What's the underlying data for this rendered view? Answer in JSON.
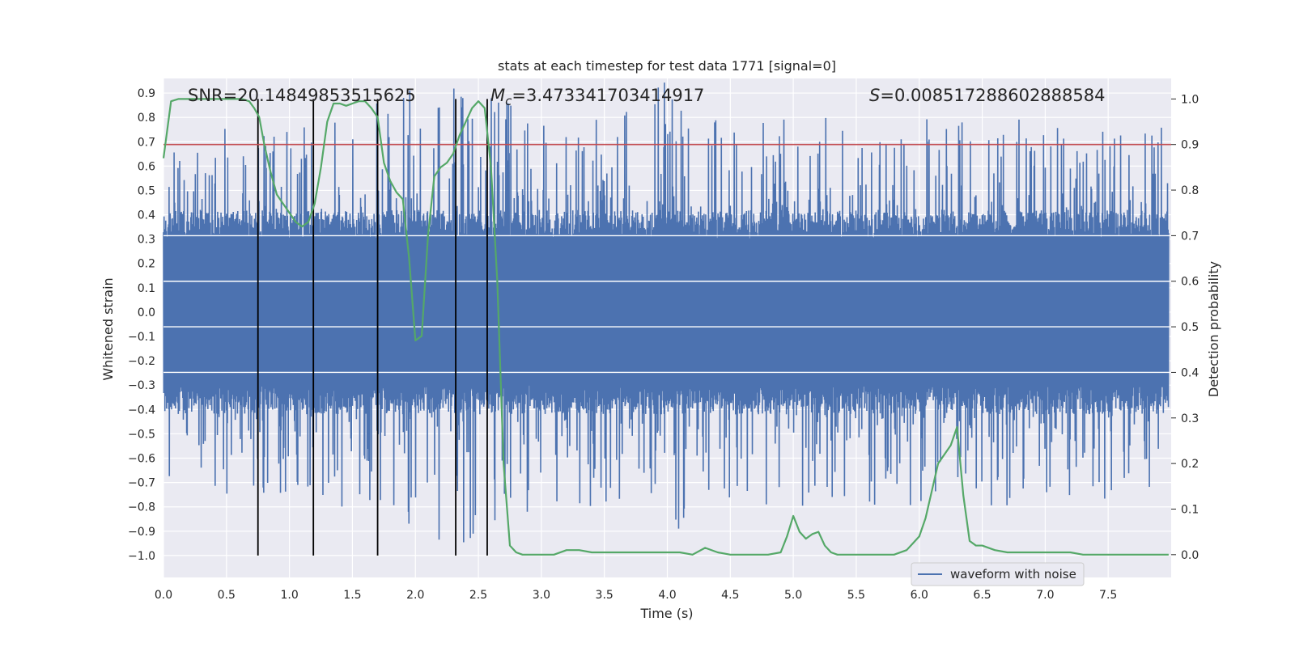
{
  "chart_data": {
    "type": "line",
    "title": "stats at each timestep for test data 1771 [signal=0]",
    "xlabel": "Time (s)",
    "ylabel_left": "Whitened strain",
    "ylabel_right": "Detection probability",
    "xlim": [
      0.0,
      8.0
    ],
    "ylim_left": [
      -1.09,
      0.96
    ],
    "ylim_right": [
      -0.05,
      1.045
    ],
    "x_ticks": [
      "0.0",
      "0.5",
      "1.0",
      "1.5",
      "2.0",
      "2.5",
      "3.0",
      "3.5",
      "4.0",
      "4.5",
      "5.0",
      "5.5",
      "6.0",
      "6.5",
      "7.0",
      "7.5"
    ],
    "y_ticks_left": [
      "-1.0",
      "-0.9",
      "-0.8",
      "-0.7",
      "-0.6",
      "-0.5",
      "-0.4",
      "-0.3",
      "-0.2",
      "-0.1",
      "0.0",
      "0.1",
      "0.2",
      "0.3",
      "0.4",
      "0.5",
      "0.6",
      "0.7",
      "0.8",
      "0.9"
    ],
    "y_ticks_right": [
      "0.0",
      "0.1",
      "0.2",
      "0.3",
      "0.4",
      "0.5",
      "0.6",
      "0.7",
      "0.8",
      "0.9",
      "1.0"
    ],
    "annotations": {
      "snr": "SNR=20.14849853515625",
      "mc_symbol": "M",
      "mc_sub": "c",
      "mc_value": "=3.473341703414917",
      "s_symbol": "S",
      "s_value": "=0.008517288602888584"
    },
    "threshold": 0.9,
    "event_times": [
      0.75,
      1.19,
      1.7,
      2.32,
      2.57
    ],
    "event_line_ymin": -1.0,
    "waveform": {
      "name": "waveform with noise",
      "x_max": 7.98,
      "core_amplitude": 0.3,
      "envelope": [
        [
          0.0,
          0.75
        ],
        [
          0.5,
          0.8
        ],
        [
          1.0,
          0.75
        ],
        [
          1.5,
          0.85
        ],
        [
          2.0,
          0.95
        ],
        [
          2.5,
          0.95
        ],
        [
          3.0,
          0.8
        ],
        [
          3.5,
          0.8
        ],
        [
          4.0,
          0.95
        ],
        [
          4.5,
          0.8
        ],
        [
          5.0,
          0.8
        ],
        [
          5.5,
          0.8
        ],
        [
          6.0,
          0.8
        ],
        [
          6.5,
          0.8
        ],
        [
          7.0,
          0.8
        ],
        [
          7.5,
          0.8
        ],
        [
          8.0,
          0.75
        ]
      ]
    },
    "probability": {
      "x": [
        0.0,
        0.06,
        0.12,
        0.2,
        0.35,
        0.5,
        0.62,
        0.68,
        0.72,
        0.76,
        0.8,
        0.85,
        0.9,
        0.95,
        1.0,
        1.05,
        1.1,
        1.15,
        1.2,
        1.25,
        1.3,
        1.35,
        1.4,
        1.45,
        1.5,
        1.55,
        1.6,
        1.65,
        1.7,
        1.75,
        1.8,
        1.85,
        1.9,
        1.95,
        2.0,
        2.05,
        2.1,
        2.15,
        2.2,
        2.25,
        2.3,
        2.35,
        2.4,
        2.45,
        2.5,
        2.55,
        2.6,
        2.65,
        2.7,
        2.75,
        2.8,
        2.85,
        2.9,
        3.0,
        3.1,
        3.2,
        3.3,
        3.4,
        3.5,
        3.6,
        3.7,
        3.8,
        3.9,
        4.0,
        4.1,
        4.2,
        4.3,
        4.4,
        4.5,
        4.6,
        4.7,
        4.8,
        4.9,
        4.95,
        5.0,
        5.05,
        5.1,
        5.15,
        5.2,
        5.25,
        5.3,
        5.35,
        5.4,
        5.5,
        5.6,
        5.7,
        5.8,
        5.9,
        5.95,
        6.0,
        6.05,
        6.1,
        6.15,
        6.2,
        6.25,
        6.3,
        6.35,
        6.4,
        6.45,
        6.5,
        6.6,
        6.7,
        6.8,
        6.9,
        7.0,
        7.1,
        7.2,
        7.3,
        7.4,
        7.5,
        7.6,
        7.7,
        7.8,
        7.9,
        7.98
      ],
      "values": [
        0.87,
        0.995,
        1.0,
        1.0,
        1.0,
        1.0,
        1.0,
        0.995,
        0.98,
        0.96,
        0.9,
        0.84,
        0.79,
        0.77,
        0.75,
        0.73,
        0.72,
        0.73,
        0.77,
        0.85,
        0.95,
        0.99,
        0.99,
        0.985,
        0.99,
        0.995,
        0.995,
        0.98,
        0.96,
        0.86,
        0.82,
        0.795,
        0.78,
        0.65,
        0.47,
        0.48,
        0.7,
        0.83,
        0.85,
        0.86,
        0.88,
        0.92,
        0.95,
        0.98,
        0.995,
        0.98,
        0.85,
        0.6,
        0.2,
        0.02,
        0.005,
        0.0,
        0.0,
        0.0,
        0.0,
        0.01,
        0.01,
        0.005,
        0.005,
        0.005,
        0.005,
        0.005,
        0.005,
        0.005,
        0.005,
        0.0,
        0.015,
        0.005,
        0.0,
        0.0,
        0.0,
        0.0,
        0.005,
        0.04,
        0.085,
        0.05,
        0.035,
        0.045,
        0.05,
        0.02,
        0.005,
        0.0,
        0.0,
        0.0,
        0.0,
        0.0,
        0.0,
        0.01,
        0.025,
        0.04,
        0.08,
        0.14,
        0.2,
        0.22,
        0.24,
        0.28,
        0.13,
        0.03,
        0.02,
        0.02,
        0.01,
        0.005,
        0.005,
        0.005,
        0.005,
        0.005,
        0.005,
        0.0,
        0.0,
        0.0,
        0.0,
        0.0,
        0.0,
        0.0,
        0.0
      ]
    },
    "legend": {
      "placement": "lower-right",
      "entries": [
        "waveform with noise"
      ]
    },
    "colors": {
      "waveform": "#4c72b0",
      "probability": "#55a868",
      "threshold": "#c44e52",
      "events": "#000000",
      "plot_bg": "#eaeaf2",
      "grid": "#ffffff"
    }
  }
}
